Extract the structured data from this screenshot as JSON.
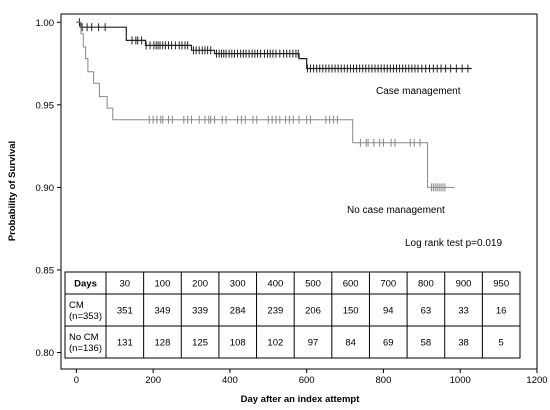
{
  "chart_data": {
    "type": "line",
    "step": true,
    "xlabel": "Day after an index attempt",
    "ylabel": "Probability of Survival",
    "xlim": [
      -40,
      1200
    ],
    "ylim": [
      0.79,
      1.005
    ],
    "x_ticks": [
      0,
      200,
      400,
      600,
      800,
      1000,
      1200
    ],
    "y_ticks": [
      0.8,
      0.85,
      0.9,
      0.95,
      1.0
    ],
    "y_tick_labels": [
      "0.80",
      "0.85",
      "0.90",
      "0.95",
      "1.00"
    ],
    "grid": false,
    "series": [
      {
        "name": "Case management",
        "color": "#222222",
        "steps": [
          [
            0,
            1.0
          ],
          [
            10,
            0.997
          ],
          [
            130,
            0.989
          ],
          [
            180,
            0.986
          ],
          [
            300,
            0.983
          ],
          [
            360,
            0.981
          ],
          [
            580,
            0.978
          ],
          [
            600,
            0.972
          ],
          [
            1030,
            0.972
          ]
        ],
        "censored": [
          8,
          15,
          28,
          40,
          58,
          75,
          145,
          155,
          160,
          170,
          182,
          192,
          202,
          208,
          213,
          218,
          225,
          232,
          240,
          248,
          258,
          268,
          275,
          283,
          290,
          305,
          312,
          320,
          328,
          335,
          342,
          350,
          365,
          372,
          378,
          384,
          390,
          398,
          405,
          412,
          420,
          428,
          435,
          442,
          450,
          458,
          465,
          472,
          480,
          490,
          498,
          505,
          512,
          520,
          530,
          540,
          548,
          556,
          564,
          572,
          578,
          602,
          610,
          618,
          626,
          634,
          642,
          650,
          658,
          666,
          674,
          682,
          690,
          698,
          706,
          714,
          722,
          730,
          738,
          746,
          754,
          762,
          770,
          778,
          786,
          794,
          802,
          810,
          818,
          826,
          834,
          842,
          850,
          858,
          866,
          874,
          882,
          890,
          900,
          910,
          920,
          930,
          940,
          950,
          962,
          975,
          990,
          1005,
          1020
        ]
      },
      {
        "name": "No case management",
        "color": "#888888",
        "steps": [
          [
            0,
            1.0
          ],
          [
            12,
            0.993
          ],
          [
            18,
            0.985
          ],
          [
            24,
            0.978
          ],
          [
            30,
            0.97
          ],
          [
            45,
            0.963
          ],
          [
            60,
            0.955
          ],
          [
            80,
            0.948
          ],
          [
            95,
            0.941
          ],
          [
            720,
            0.927
          ],
          [
            915,
            0.9
          ],
          [
            985,
            0.9
          ]
        ],
        "censored": [
          190,
          200,
          210,
          220,
          225,
          240,
          250,
          280,
          290,
          300,
          320,
          335,
          345,
          350,
          360,
          380,
          390,
          420,
          430,
          440,
          460,
          470,
          500,
          510,
          520,
          530,
          545,
          555,
          565,
          580,
          600,
          610,
          650,
          660,
          670,
          680,
          740,
          755,
          760,
          775,
          790,
          800,
          820,
          830,
          870,
          880,
          895,
          925,
          930,
          935,
          940,
          945,
          950,
          955,
          960
        ]
      }
    ],
    "annotations": {
      "case_management": "Case management",
      "no_case_management": "No case management",
      "log_rank": "Log rank test p=0.019"
    },
    "risk_table": {
      "header": "Days",
      "days": [
        "30",
        "100",
        "200",
        "300",
        "400",
        "500",
        "600",
        "700",
        "800",
        "900",
        "950"
      ],
      "rows": [
        {
          "label_line1": "CM",
          "label_line2": "(n=353)",
          "values": [
            "351",
            "349",
            "339",
            "284",
            "239",
            "206",
            "150",
            "94",
            "63",
            "33",
            "16"
          ]
        },
        {
          "label_line1": "No CM",
          "label_line2": "(n=136)",
          "values": [
            "131",
            "128",
            "125",
            "108",
            "102",
            "97",
            "84",
            "69",
            "58",
            "38",
            "5"
          ]
        }
      ]
    }
  }
}
